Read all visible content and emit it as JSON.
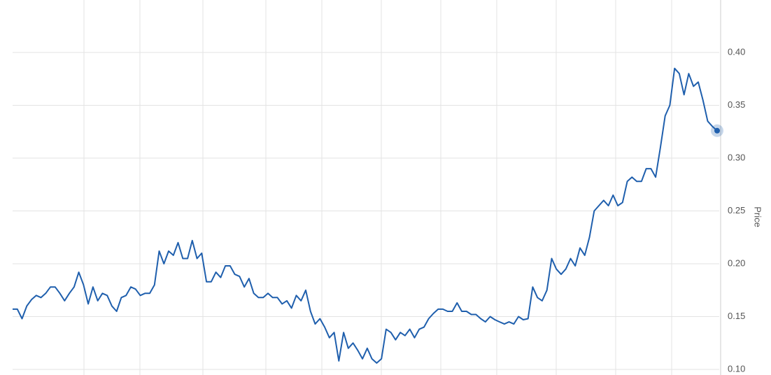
{
  "chart_data": {
    "type": "line",
    "y_axis_label": "Price",
    "color": "#1f5fad",
    "grid": true,
    "ylim": [
      0.0947,
      0.4497
    ],
    "yticks": [
      {
        "value": 0.1,
        "label": "0.10"
      },
      {
        "value": 0.15,
        "label": "0.15"
      },
      {
        "value": 0.2,
        "label": "0.20"
      },
      {
        "value": 0.25,
        "label": "0.25"
      },
      {
        "value": 0.3,
        "label": "0.30"
      },
      {
        "value": 0.35,
        "label": "0.35"
      },
      {
        "value": 0.4,
        "label": "0.40"
      }
    ],
    "values": [
      0.157,
      0.157,
      0.148,
      0.16,
      0.166,
      0.17,
      0.168,
      0.172,
      0.178,
      0.178,
      0.172,
      0.165,
      0.172,
      0.178,
      0.192,
      0.18,
      0.162,
      0.178,
      0.165,
      0.172,
      0.17,
      0.16,
      0.155,
      0.168,
      0.17,
      0.178,
      0.176,
      0.17,
      0.172,
      0.172,
      0.18,
      0.212,
      0.2,
      0.212,
      0.208,
      0.22,
      0.205,
      0.205,
      0.222,
      0.205,
      0.21,
      0.183,
      0.183,
      0.192,
      0.187,
      0.198,
      0.198,
      0.19,
      0.188,
      0.178,
      0.186,
      0.172,
      0.168,
      0.168,
      0.172,
      0.168,
      0.168,
      0.162,
      0.165,
      0.158,
      0.17,
      0.165,
      0.175,
      0.155,
      0.143,
      0.148,
      0.14,
      0.13,
      0.135,
      0.108,
      0.135,
      0.12,
      0.125,
      0.118,
      0.11,
      0.12,
      0.11,
      0.106,
      0.11,
      0.138,
      0.135,
      0.128,
      0.135,
      0.132,
      0.138,
      0.13,
      0.138,
      0.14,
      0.148,
      0.153,
      0.157,
      0.157,
      0.155,
      0.155,
      0.163,
      0.155,
      0.155,
      0.152,
      0.152,
      0.148,
      0.145,
      0.15,
      0.147,
      0.145,
      0.143,
      0.145,
      0.143,
      0.15,
      0.147,
      0.148,
      0.178,
      0.168,
      0.165,
      0.175,
      0.205,
      0.195,
      0.19,
      0.195,
      0.205,
      0.198,
      0.215,
      0.208,
      0.225,
      0.25,
      0.255,
      0.26,
      0.255,
      0.265,
      0.255,
      0.258,
      0.278,
      0.282,
      0.278,
      0.278,
      0.29,
      0.29,
      0.282,
      0.31,
      0.34,
      0.35,
      0.385,
      0.38,
      0.36,
      0.38,
      0.368,
      0.372,
      0.355,
      0.335,
      0.33,
      0.326
    ]
  }
}
